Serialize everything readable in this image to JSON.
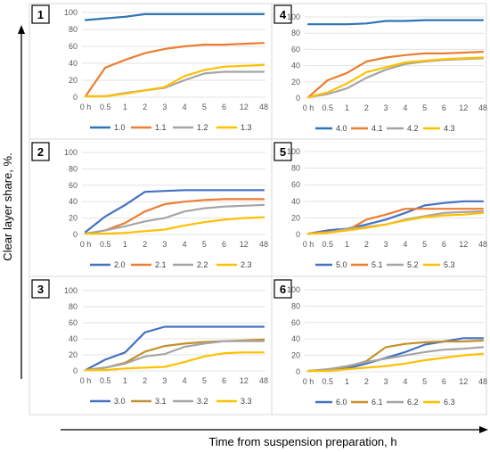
{
  "figure": {
    "ylabel": "Clear layer share, %.",
    "xlabel": "Time from suspension preparation, h"
  },
  "chart_data": [
    {
      "type": "line",
      "panel": "1",
      "categories": [
        "0 h",
        "0.5",
        "1",
        "2",
        "3",
        "4",
        "5",
        "6",
        "12",
        "48"
      ],
      "ylim": [
        0,
        100
      ],
      "yticks": [
        0,
        20,
        40,
        60,
        80,
        100
      ],
      "grid": true,
      "legend_position": "bottom",
      "series": [
        {
          "name": "1.0",
          "color": "#2e75b6",
          "values": [
            91,
            93,
            95,
            98,
            98,
            98,
            98,
            98,
            98,
            98
          ]
        },
        {
          "name": "1.1",
          "color": "#ed7d31",
          "values": [
            1,
            35,
            44,
            52,
            57,
            60,
            62,
            62,
            63,
            64
          ]
        },
        {
          "name": "1.2",
          "color": "#a5a5a5",
          "values": [
            1,
            1,
            5,
            8,
            11,
            20,
            28,
            30,
            30,
            30
          ]
        },
        {
          "name": "1.3",
          "color": "#ffc000",
          "values": [
            1,
            1,
            4,
            8,
            12,
            25,
            32,
            36,
            37,
            38
          ]
        }
      ]
    },
    {
      "type": "line",
      "panel": "4",
      "categories": [
        "0 h",
        "0.5",
        "1",
        "2",
        "3",
        "4",
        "5",
        "6",
        "12",
        "48"
      ],
      "ylim": [
        0,
        100
      ],
      "yticks": [
        0,
        20,
        40,
        60,
        80,
        100
      ],
      "grid": true,
      "legend_position": "bottom",
      "series": [
        {
          "name": "4.0",
          "color": "#2e75b6",
          "values": [
            91,
            91,
            91,
            92,
            95,
            95,
            96,
            96,
            96,
            96
          ]
        },
        {
          "name": "4.1",
          "color": "#ed7d31",
          "values": [
            1,
            22,
            31,
            45,
            50,
            53,
            55,
            55,
            56,
            57
          ]
        },
        {
          "name": "4.2",
          "color": "#a5a5a5",
          "values": [
            1,
            5,
            12,
            25,
            35,
            42,
            45,
            47,
            48,
            49
          ]
        },
        {
          "name": "4.3",
          "color": "#ffc000",
          "values": [
            1,
            7,
            18,
            32,
            38,
            44,
            46,
            48,
            49,
            50
          ]
        }
      ]
    },
    {
      "type": "line",
      "panel": "2",
      "categories": [
        "0 h",
        "0.5",
        "1",
        "2",
        "3",
        "4",
        "5",
        "6",
        "12",
        "48"
      ],
      "ylim": [
        0,
        100
      ],
      "yticks": [
        0,
        20,
        40,
        60,
        80,
        100
      ],
      "grid": true,
      "legend_position": "bottom",
      "series": [
        {
          "name": "2.0",
          "color": "#4472c4",
          "values": [
            3,
            22,
            36,
            52,
            53,
            54,
            54,
            54,
            54,
            54
          ]
        },
        {
          "name": "2.1",
          "color": "#ed7d31",
          "values": [
            1,
            5,
            14,
            28,
            37,
            40,
            42,
            43,
            43,
            43
          ]
        },
        {
          "name": "2.2",
          "color": "#a5a5a5",
          "values": [
            1,
            5,
            10,
            16,
            20,
            28,
            32,
            34,
            35,
            36
          ]
        },
        {
          "name": "2.3",
          "color": "#ffc000",
          "values": [
            1,
            1,
            2,
            4,
            6,
            11,
            15,
            18,
            20,
            21
          ]
        }
      ]
    },
    {
      "type": "line",
      "panel": "5",
      "categories": [
        "0 h",
        "0.5",
        "1",
        "2",
        "3",
        "4",
        "5",
        "6",
        "12",
        "48"
      ],
      "ylim": [
        0,
        100
      ],
      "yticks": [
        0,
        20,
        40,
        60,
        80,
        100
      ],
      "grid": true,
      "legend_position": "bottom",
      "series": [
        {
          "name": "5.0",
          "color": "#4472c4",
          "values": [
            1,
            5,
            7,
            12,
            18,
            26,
            35,
            38,
            40,
            40
          ]
        },
        {
          "name": "5.1",
          "color": "#ed7d31",
          "values": [
            1,
            3,
            5,
            18,
            24,
            31,
            31,
            31,
            31,
            31
          ]
        },
        {
          "name": "5.2",
          "color": "#a5a5a5",
          "values": [
            1,
            2,
            7,
            9,
            12,
            18,
            22,
            26,
            27,
            28
          ]
        },
        {
          "name": "5.3",
          "color": "#ffc000",
          "values": [
            1,
            2,
            5,
            8,
            12,
            17,
            21,
            23,
            24,
            26
          ]
        }
      ]
    },
    {
      "type": "line",
      "panel": "3",
      "categories": [
        "0 h",
        "0.5",
        "1",
        "2",
        "3",
        "4",
        "5",
        "6",
        "12",
        "48"
      ],
      "ylim": [
        0,
        100
      ],
      "yticks": [
        0,
        20,
        40,
        60,
        80,
        100
      ],
      "grid": true,
      "legend_position": "bottom",
      "series": [
        {
          "name": "3.0",
          "color": "#4472c4",
          "values": [
            1,
            14,
            23,
            48,
            55,
            55,
            55,
            55,
            55,
            55
          ]
        },
        {
          "name": "3.1",
          "color": "#c5902a",
          "values": [
            1,
            4,
            10,
            24,
            31,
            34,
            36,
            37,
            38,
            39
          ]
        },
        {
          "name": "3.2",
          "color": "#a5a5a5",
          "values": [
            1,
            4,
            9,
            18,
            21,
            30,
            34,
            37,
            37,
            37
          ]
        },
        {
          "name": "3.3",
          "color": "#ffc000",
          "values": [
            1,
            1,
            3,
            4,
            5,
            11,
            18,
            22,
            23,
            23
          ]
        }
      ]
    },
    {
      "type": "line",
      "panel": "6",
      "categories": [
        "0 h",
        "0.5",
        "1",
        "2",
        "3",
        "4",
        "5",
        "6",
        "12",
        "48"
      ],
      "ylim": [
        0,
        100
      ],
      "yticks": [
        0,
        20,
        40,
        60,
        80,
        100
      ],
      "grid": true,
      "legend_position": "bottom",
      "series": [
        {
          "name": "6.0",
          "color": "#4472c4",
          "values": [
            1,
            2,
            4,
            10,
            17,
            24,
            33,
            37,
            41,
            41
          ]
        },
        {
          "name": "6.1",
          "color": "#c5902a",
          "values": [
            1,
            3,
            6,
            13,
            30,
            34,
            36,
            37,
            37,
            38
          ]
        },
        {
          "name": "6.2",
          "color": "#a5a5a5",
          "values": [
            1,
            3,
            7,
            12,
            16,
            20,
            24,
            27,
            28,
            30
          ]
        },
        {
          "name": "6.3",
          "color": "#ffc000",
          "values": [
            1,
            1,
            3,
            5,
            7,
            10,
            14,
            17,
            20,
            22
          ]
        }
      ]
    }
  ]
}
